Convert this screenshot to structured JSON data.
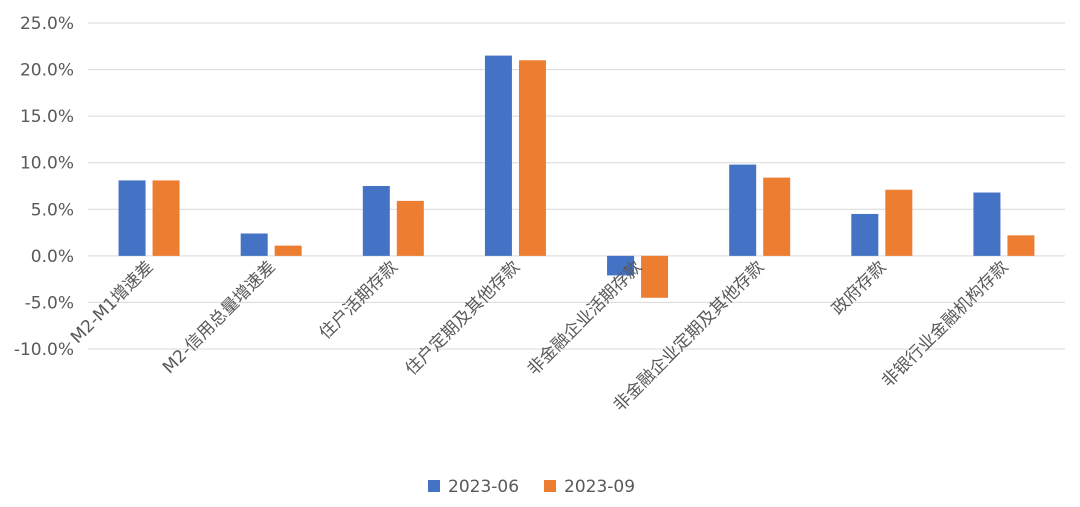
{
  "chart_data": {
    "type": "bar",
    "categories": [
      "M2-M1增速差",
      "M2-信用总量增速差",
      "住户活期存款",
      "住户定期及其他存款",
      "非金融企业活期存款",
      "非金融企业定期及其他存款",
      "政府存款",
      "非银行业金融机构存款"
    ],
    "series": [
      {
        "name": "2023-06",
        "color": "#4472c4",
        "values": [
          8.1,
          2.4,
          7.5,
          21.5,
          -2.1,
          9.8,
          4.5,
          6.8
        ]
      },
      {
        "name": "2023-09",
        "color": "#ed7d31",
        "values": [
          8.1,
          1.1,
          5.9,
          21.0,
          -4.5,
          8.4,
          7.1,
          2.2
        ]
      }
    ],
    "ylim": [
      -10,
      25
    ],
    "yticks": [
      "25.0%",
      "20.0%",
      "15.0%",
      "10.0%",
      "5.0%",
      "0.0%",
      "-5.0%",
      "-10.0%"
    ],
    "ytick_values": [
      25,
      20,
      15,
      10,
      5,
      0,
      -5,
      -10
    ],
    "grid": true,
    "legend_position": "bottom",
    "xlabel": "",
    "ylabel": ""
  }
}
